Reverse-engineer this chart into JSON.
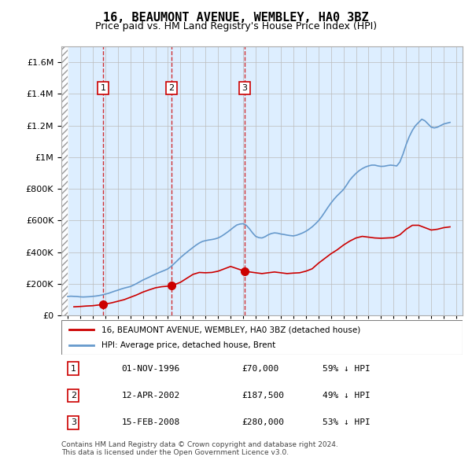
{
  "title": "16, BEAUMONT AVENUE, WEMBLEY, HA0 3BZ",
  "subtitle": "Price paid vs. HM Land Registry's House Price Index (HPI)",
  "transactions": [
    {
      "num": 1,
      "date": "01-NOV-1996",
      "price": 70000,
      "pct": "59%↓ HPI",
      "year": 1996.83
    },
    {
      "num": 2,
      "date": "12-APR-2002",
      "price": 187500,
      "pct": "49%↓ HPI",
      "year": 2002.28
    },
    {
      "num": 3,
      "date": "15-FEB-2008",
      "price": 280000,
      "pct": "53%↓ HPI",
      "year": 2008.12
    }
  ],
  "legend_red": "16, BEAUMONT AVENUE, WEMBLEY, HA0 3BZ (detached house)",
  "legend_blue": "HPI: Average price, detached house, Brent",
  "footnote1": "Contains HM Land Registry data © Crown copyright and database right 2024.",
  "footnote2": "This data is licensed under the Open Government Licence v3.0.",
  "red_color": "#cc0000",
  "blue_color": "#6699cc",
  "hatch_color": "#cccccc",
  "grid_color": "#bbbbbb",
  "bg_color": "#ddeeff",
  "ylim": [
    0,
    1700000
  ],
  "xlim_left": 1993.5,
  "xlim_right": 2025.5,
  "hpi_data": {
    "years": [
      1994.0,
      1994.25,
      1994.5,
      1994.75,
      1995.0,
      1995.25,
      1995.5,
      1995.75,
      1996.0,
      1996.25,
      1996.5,
      1996.75,
      1997.0,
      1997.25,
      1997.5,
      1997.75,
      1998.0,
      1998.25,
      1998.5,
      1998.75,
      1999.0,
      1999.25,
      1999.5,
      1999.75,
      2000.0,
      2000.25,
      2000.5,
      2000.75,
      2001.0,
      2001.25,
      2001.5,
      2001.75,
      2002.0,
      2002.25,
      2002.5,
      2002.75,
      2003.0,
      2003.25,
      2003.5,
      2003.75,
      2004.0,
      2004.25,
      2004.5,
      2004.75,
      2005.0,
      2005.25,
      2005.5,
      2005.75,
      2006.0,
      2006.25,
      2006.5,
      2006.75,
      2007.0,
      2007.25,
      2007.5,
      2007.75,
      2008.0,
      2008.25,
      2008.5,
      2008.75,
      2009.0,
      2009.25,
      2009.5,
      2009.75,
      2010.0,
      2010.25,
      2010.5,
      2010.75,
      2011.0,
      2011.25,
      2011.5,
      2011.75,
      2012.0,
      2012.25,
      2012.5,
      2012.75,
      2013.0,
      2013.25,
      2013.5,
      2013.75,
      2014.0,
      2014.25,
      2014.5,
      2014.75,
      2015.0,
      2015.25,
      2015.5,
      2015.75,
      2016.0,
      2016.25,
      2016.5,
      2016.75,
      2017.0,
      2017.25,
      2017.5,
      2017.75,
      2018.0,
      2018.25,
      2018.5,
      2018.75,
      2019.0,
      2019.25,
      2019.5,
      2019.75,
      2020.0,
      2020.25,
      2020.5,
      2020.75,
      2021.0,
      2021.25,
      2021.5,
      2021.75,
      2022.0,
      2022.25,
      2022.5,
      2022.75,
      2023.0,
      2023.25,
      2023.5,
      2023.75,
      2024.0,
      2024.25,
      2024.5
    ],
    "values": [
      120000,
      122000,
      121000,
      120000,
      118000,
      117000,
      118000,
      119000,
      121000,
      123000,
      126000,
      130000,
      135000,
      140000,
      147000,
      154000,
      160000,
      167000,
      173000,
      178000,
      183000,
      192000,
      202000,
      213000,
      224000,
      233000,
      242000,
      252000,
      261000,
      270000,
      278000,
      286000,
      295000,
      310000,
      328000,
      347000,
      366000,
      383000,
      399000,
      415000,
      430000,
      445000,
      458000,
      468000,
      473000,
      477000,
      480000,
      484000,
      490000,
      500000,
      513000,
      527000,
      542000,
      558000,
      572000,
      578000,
      580000,
      570000,
      548000,
      522000,
      500000,
      492000,
      490000,
      498000,
      510000,
      518000,
      522000,
      520000,
      515000,
      512000,
      508000,
      505000,
      503000,
      507000,
      514000,
      522000,
      532000,
      545000,
      560000,
      578000,
      598000,
      623000,
      652000,
      682000,
      710000,
      735000,
      757000,
      776000,
      796000,
      824000,
      855000,
      878000,
      898000,
      915000,
      928000,
      938000,
      945000,
      950000,
      950000,
      945000,
      942000,
      943000,
      947000,
      950000,
      948000,
      945000,
      970000,
      1020000,
      1080000,
      1130000,
      1170000,
      1200000,
      1220000,
      1240000,
      1230000,
      1210000,
      1190000,
      1185000,
      1190000,
      1200000,
      1210000,
      1215000,
      1220000
    ]
  },
  "price_data": {
    "years": [
      1994.5,
      1995.0,
      1995.5,
      1996.0,
      1996.83,
      1997.5,
      1998.0,
      1998.5,
      1999.0,
      1999.5,
      2000.0,
      2000.5,
      2001.0,
      2001.5,
      2002.28,
      2003.0,
      2003.5,
      2004.0,
      2004.5,
      2005.0,
      2005.5,
      2006.0,
      2006.5,
      2007.0,
      2008.12,
      2009.0,
      2009.5,
      2010.0,
      2010.5,
      2011.0,
      2011.5,
      2012.0,
      2012.5,
      2013.0,
      2013.5,
      2014.0,
      2014.5,
      2015.0,
      2015.5,
      2016.0,
      2016.5,
      2017.0,
      2017.5,
      2018.0,
      2018.5,
      2019.0,
      2019.5,
      2020.0,
      2020.5,
      2021.0,
      2021.5,
      2022.0,
      2022.5,
      2023.0,
      2023.5,
      2024.0,
      2024.5
    ],
    "values": [
      55000,
      57000,
      60000,
      62000,
      70000,
      80000,
      90000,
      100000,
      115000,
      130000,
      148000,
      162000,
      175000,
      182000,
      187500,
      210000,
      235000,
      260000,
      272000,
      270000,
      272000,
      280000,
      295000,
      310000,
      280000,
      270000,
      265000,
      270000,
      275000,
      270000,
      265000,
      268000,
      270000,
      280000,
      295000,
      330000,
      360000,
      390000,
      415000,
      445000,
      470000,
      490000,
      500000,
      495000,
      490000,
      488000,
      490000,
      492000,
      510000,
      545000,
      570000,
      570000,
      555000,
      540000,
      545000,
      555000,
      560000
    ]
  }
}
